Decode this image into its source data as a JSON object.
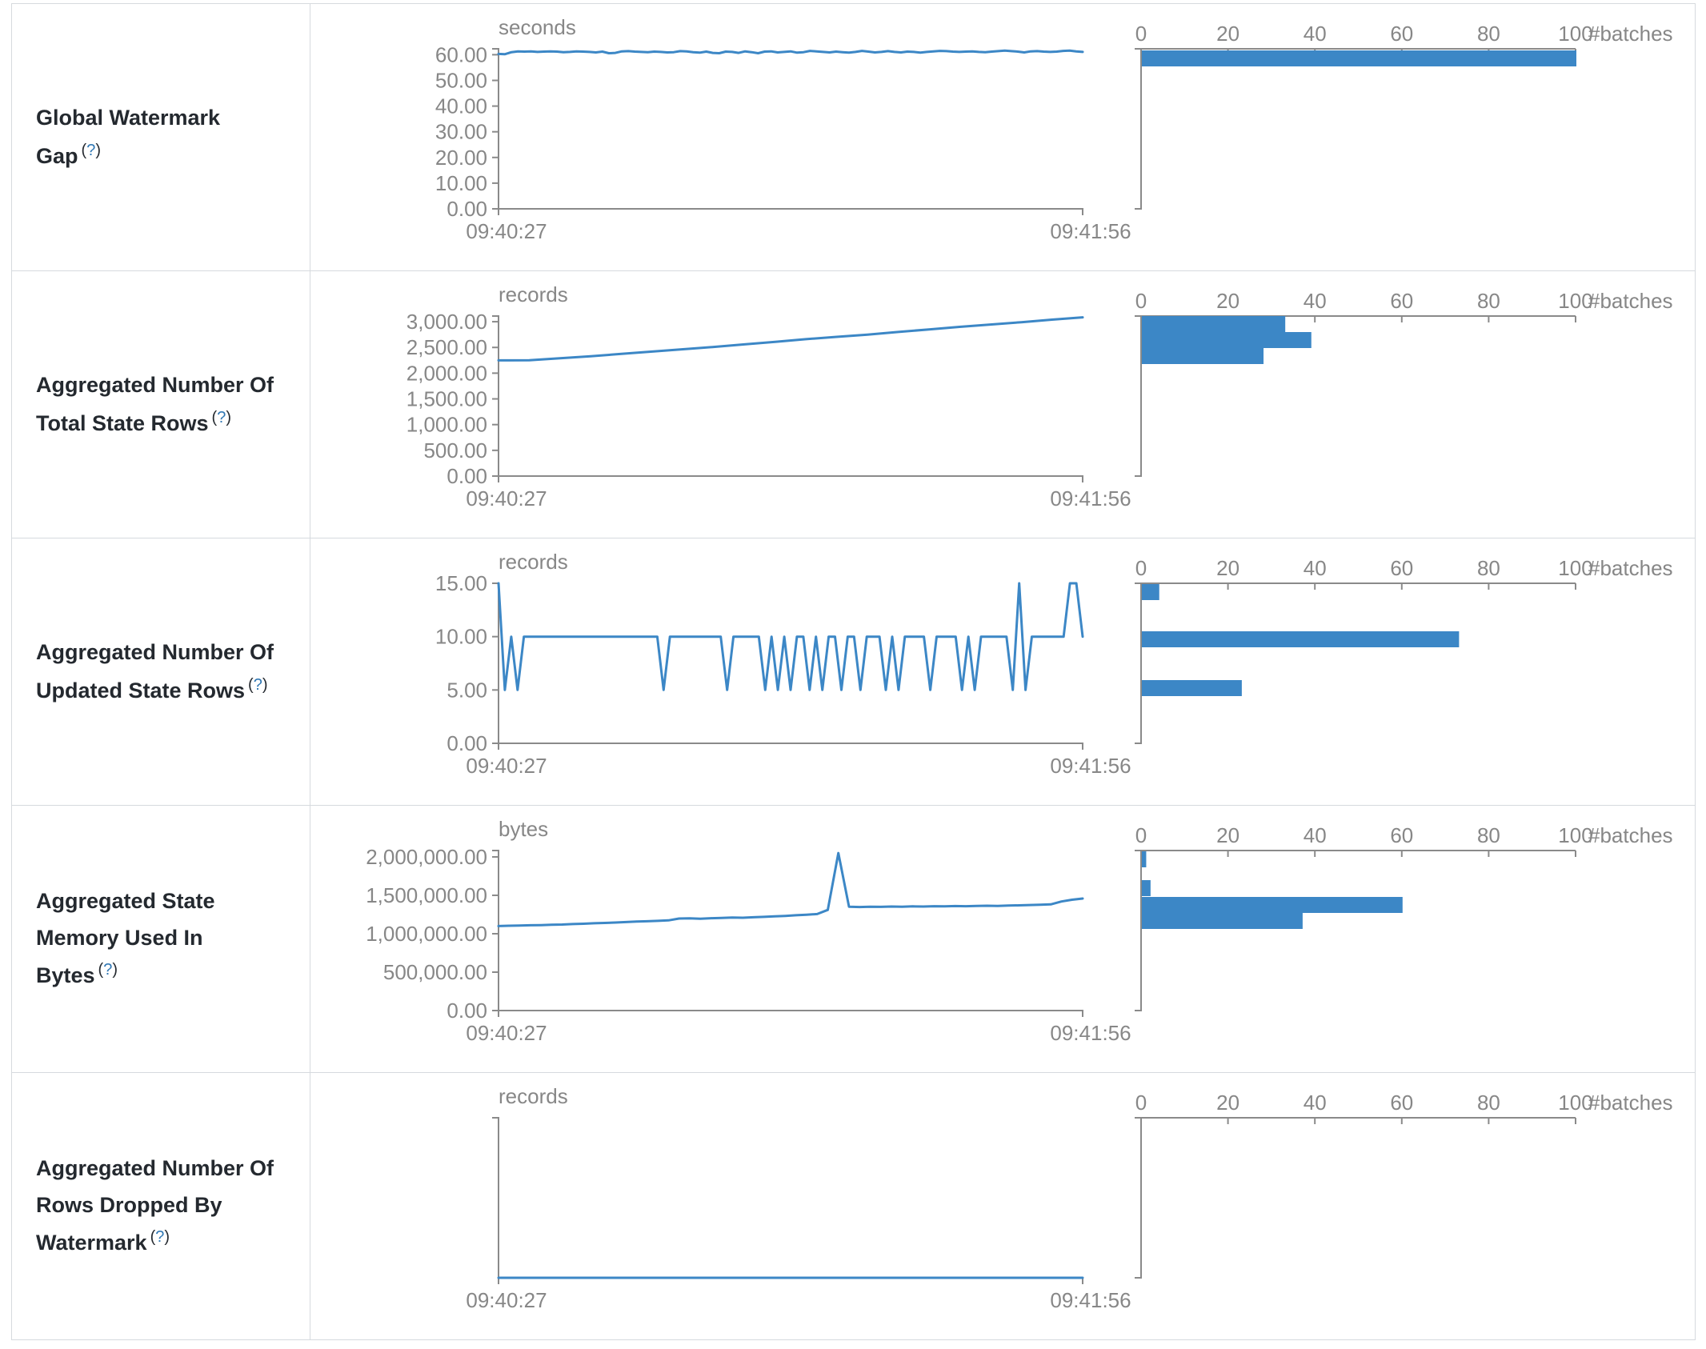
{
  "colors": {
    "line": "#3c87c6",
    "bar": "#3c87c6",
    "axis": "#8a8a8a",
    "axis_text": "#878787",
    "metric_text": "#24292f",
    "help_link": "#3178b4",
    "border": "#d6dade"
  },
  "axes": {
    "x_start_label": "09:40:27",
    "x_end_label": "09:41:56",
    "hist_ticks": [
      "0",
      "20",
      "40",
      "60",
      "80",
      "100"
    ],
    "hist_tick_values": [
      0,
      20,
      40,
      60,
      80,
      100
    ],
    "hist_max": 100,
    "hist_label": "#batches"
  },
  "rows": [
    {
      "metric": "Global Watermark Gap",
      "help_open": "(",
      "help_q": "?",
      "help_close": ")",
      "timeline": {
        "unit": "seconds",
        "y_max": 62.3,
        "y_ticks": [
          {
            "label": "60.00",
            "v": 60
          },
          {
            "label": "50.00",
            "v": 50
          },
          {
            "label": "40.00",
            "v": 40
          },
          {
            "label": "30.00",
            "v": 30
          },
          {
            "label": "20.00",
            "v": 20
          },
          {
            "label": "10.00",
            "v": 10
          },
          {
            "label": "0.00",
            "v": 0
          }
        ],
        "points": [
          60.3,
          60.2,
          61.0,
          61.3,
          61.2,
          61.3,
          61.1,
          61.2,
          61.3,
          61.2,
          61.0,
          61.1,
          61.3,
          61.2,
          61.1,
          60.9,
          61.2,
          60.6,
          60.7,
          61.3,
          61.4,
          61.2,
          61.1,
          61.0,
          61.2,
          61.1,
          60.9,
          61.0,
          61.4,
          61.3,
          61.0,
          60.8,
          61.2,
          60.7,
          60.6,
          61.2,
          61.1,
          60.7,
          61.3,
          61.0,
          60.6,
          61.2,
          61.3,
          60.9,
          61.1,
          61.3,
          60.8,
          61.0,
          61.5,
          61.3,
          61.1,
          60.9,
          61.2,
          61.0,
          60.8,
          61.1,
          61.5,
          61.2,
          60.9,
          61.1,
          61.4,
          61.1,
          60.9,
          61.2,
          61.1,
          60.8,
          61.1,
          61.3,
          61.5,
          61.4,
          61.2,
          61.1,
          61.2,
          61.3,
          61.1,
          61.0,
          61.2,
          61.4,
          61.6,
          61.4,
          61.2,
          60.9,
          61.3,
          61.4,
          61.2,
          61.1,
          61.2,
          61.5,
          61.6,
          61.3,
          61.1
        ]
      },
      "histogram": {
        "bars": [
          {
            "count": 100,
            "top": 2
          }
        ]
      }
    },
    {
      "metric": "Aggregated Number Of Total State Rows",
      "help_open": "(",
      "help_q": "?",
      "help_close": ")",
      "timeline": {
        "unit": "records",
        "y_max": 3110,
        "y_ticks": [
          {
            "label": "3,000.00",
            "v": 3000
          },
          {
            "label": "2,500.00",
            "v": 2500
          },
          {
            "label": "2,000.00",
            "v": 2000
          },
          {
            "label": "1,500.00",
            "v": 1500
          },
          {
            "label": "1,000.00",
            "v": 1000
          },
          {
            "label": "500.00",
            "v": 500
          },
          {
            "label": "0.00",
            "v": 0
          }
        ],
        "points": [
          2248,
          2252,
          2290,
          2330,
          2375,
          2420,
          2465,
          2510,
          2560,
          2610,
          2660,
          2705,
          2750,
          2800,
          2850,
          2900,
          2945,
          2990,
          3040,
          3085
        ]
      },
      "histogram": {
        "bars": [
          {
            "count": 33,
            "top": 0
          },
          {
            "count": 39,
            "top": 20
          },
          {
            "count": 28,
            "top": 40
          }
        ]
      }
    },
    {
      "metric": "Aggregated Number Of Updated State Rows",
      "help_open": "(",
      "help_q": "?",
      "help_close": ")",
      "timeline": {
        "unit": "records",
        "y_max": 15,
        "y_ticks": [
          {
            "label": "15.00",
            "v": 15
          },
          {
            "label": "10.00",
            "v": 10
          },
          {
            "label": "5.00",
            "v": 5
          },
          {
            "label": "0.00",
            "v": 0
          }
        ],
        "points": [
          15,
          5,
          10,
          5,
          10,
          10,
          10,
          10,
          10,
          10,
          10,
          10,
          10,
          10,
          10,
          10,
          10,
          10,
          10,
          10,
          10,
          10,
          10,
          10,
          10,
          10,
          5,
          10,
          10,
          10,
          10,
          10,
          10,
          10,
          10,
          10,
          5,
          10,
          10,
          10,
          10,
          10,
          5,
          10,
          5,
          10,
          5,
          10,
          10,
          5,
          10,
          5,
          10,
          10,
          5,
          10,
          10,
          5,
          10,
          10,
          10,
          5,
          10,
          5,
          10,
          10,
          10,
          10,
          5,
          10,
          10,
          10,
          10,
          5,
          10,
          5,
          10,
          10,
          10,
          10,
          10,
          5,
          15,
          5,
          10,
          10,
          10,
          10,
          10,
          10,
          15,
          15,
          10
        ]
      },
      "histogram": {
        "bars": [
          {
            "count": 4,
            "top": 1
          },
          {
            "count": 73,
            "top": 60
          },
          {
            "count": 23,
            "top": 121
          }
        ]
      }
    },
    {
      "metric": "Aggregated State Memory Used In Bytes",
      "help_open": "(",
      "help_q": "?",
      "help_close": ")",
      "timeline": {
        "unit": "bytes",
        "y_max": 2083000,
        "y_ticks": [
          {
            "label": "2,000,000.00",
            "v": 2000000
          },
          {
            "label": "1,500,000.00",
            "v": 1500000
          },
          {
            "label": "1,000,000.00",
            "v": 1000000
          },
          {
            "label": "500,000.00",
            "v": 500000
          },
          {
            "label": "0.00",
            "v": 0
          }
        ],
        "points": [
          1100000,
          1104000,
          1106000,
          1110000,
          1112000,
          1116000,
          1120000,
          1126000,
          1130000,
          1136000,
          1140000,
          1146000,
          1152000,
          1158000,
          1162000,
          1168000,
          1174000,
          1198000,
          1200000,
          1196000,
          1202000,
          1206000,
          1210000,
          1208000,
          1214000,
          1220000,
          1226000,
          1232000,
          1240000,
          1248000,
          1256000,
          1310000,
          2050000,
          1352000,
          1348000,
          1352000,
          1350000,
          1354000,
          1352000,
          1356000,
          1354000,
          1358000,
          1356000,
          1360000,
          1358000,
          1362000,
          1364000,
          1362000,
          1366000,
          1370000,
          1374000,
          1378000,
          1382000,
          1420000,
          1442000,
          1458000
        ]
      },
      "histogram": {
        "bars": [
          {
            "count": 1,
            "top": 1
          },
          {
            "count": 2,
            "top": 37
          },
          {
            "count": 60,
            "top": 58
          },
          {
            "count": 37,
            "top": 78
          }
        ]
      }
    },
    {
      "metric": "Aggregated Number Of Rows Dropped By Watermark",
      "help_open": "(",
      "help_q": "?",
      "help_close": ")",
      "timeline": {
        "unit": "records",
        "y_max": 1,
        "y_ticks": [],
        "points": [
          0,
          0,
          0,
          0,
          0,
          0,
          0,
          0,
          0,
          0
        ]
      },
      "histogram": {
        "bars": []
      }
    }
  ]
}
